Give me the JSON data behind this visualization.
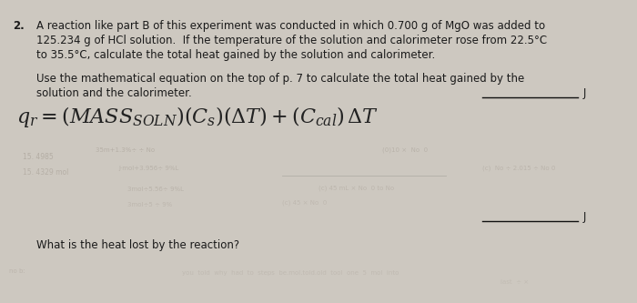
{
  "bg_color": "#cdc8c0",
  "text_color": "#1a1a1a",
  "question_num": "2.",
  "q_line1": "A reaction like part B of this experiment was conducted in which 0.700 g of MgO was added to",
  "q_line2": "125.234 g of HCl solution.  If the temperature of the solution and calorimeter rose from 22.5°C",
  "q_line3": "to 35.5°C, calculate the total heat gained by the solution and calorimeter.",
  "inst_line1": "Use the mathematical equation on the top of p. 7 to calculate the total heat gained by the",
  "inst_line2": "solution and the calorimeter.",
  "blank1_label": "J",
  "blank2_label": "J",
  "bottom_q": "What is the heat lost by the reaction?",
  "faded_color": "#9a9288",
  "eq_color": "#222222",
  "blank_line_color": "#111111"
}
